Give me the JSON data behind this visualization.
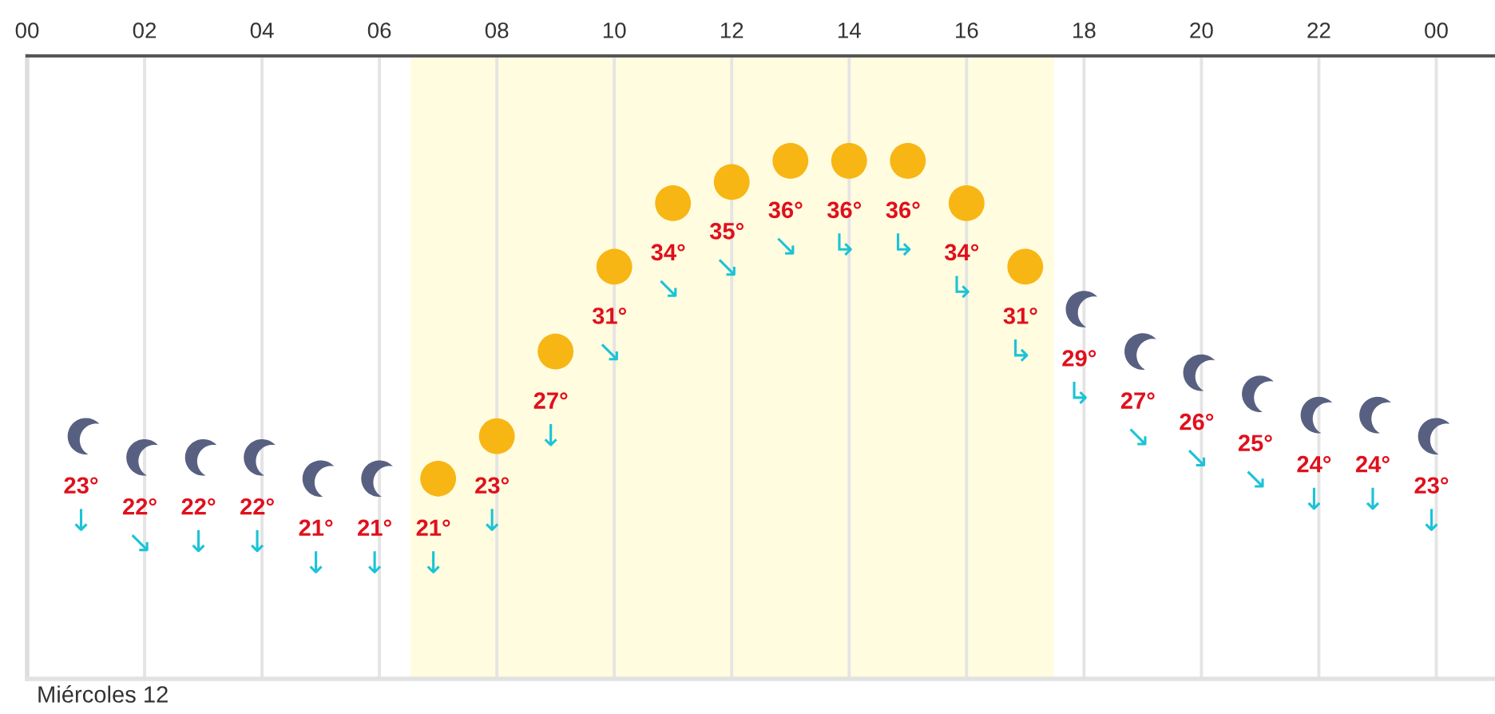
{
  "chart_data": {
    "type": "scatter",
    "x": [
      1,
      2,
      3,
      4,
      5,
      6,
      7,
      8,
      9,
      10,
      11,
      12,
      13,
      14,
      15,
      16,
      17,
      18,
      19,
      20,
      21,
      22,
      23,
      24
    ],
    "xlim": [
      0,
      25
    ],
    "xticks": [
      {
        "value": 0,
        "label": "00"
      },
      {
        "value": 2,
        "label": "02"
      },
      {
        "value": 4,
        "label": "04"
      },
      {
        "value": 6,
        "label": "06"
      },
      {
        "value": 8,
        "label": "08"
      },
      10,
      12,
      14,
      16,
      18,
      20,
      22,
      {
        "value": 24,
        "label": "00"
      }
    ],
    "grid": "x",
    "tick_labels": "x",
    "bands": [
      {
        "axis": "x",
        "from": 6.53,
        "to": 17.49,
        "color": "#fffce0"
      }
    ],
    "series": [
      {
        "color": "#586082",
        "values": [
          23,
          22,
          22,
          22,
          21,
          21,
          null,
          null,
          null,
          null,
          null,
          null,
          null,
          null,
          null,
          null,
          null,
          29,
          27,
          26,
          25,
          24,
          24,
          23
        ],
        "value_labels": [
          "23°",
          "22°",
          "22°",
          "22°",
          "21°",
          "21°",
          null,
          null,
          null,
          null,
          null,
          null,
          null,
          null,
          null,
          null,
          null,
          "29°",
          "27°",
          "26°",
          "25°",
          "24°",
          "24°",
          "23°"
        ]
      },
      {
        "marker": "circle",
        "color": "#f7b614",
        "values": [
          null,
          null,
          null,
          null,
          null,
          null,
          21,
          23,
          27,
          31,
          34,
          35,
          36,
          36,
          36,
          34,
          31,
          null,
          null,
          null,
          null,
          null,
          null,
          null
        ],
        "value_labels": [
          null,
          null,
          null,
          null,
          null,
          null,
          "21°",
          "23°",
          "27°",
          "31°",
          "34°",
          "35°",
          "36°",
          "36°",
          "36°",
          "34°",
          "31°",
          null,
          null,
          null,
          null,
          null,
          null,
          null
        ]
      }
    ],
    "annotations": [
      "Miércoles 12",
      "↓",
      "↘",
      "↓",
      "↓",
      "↓",
      "↓",
      "↓",
      "↓",
      "↓",
      "↘",
      "↘",
      "↘",
      "↘",
      "↳",
      "↳",
      "↳",
      "↳",
      "↳",
      "↘",
      "↘",
      "↘",
      "↓",
      "↓",
      "↓"
    ]
  }
}
